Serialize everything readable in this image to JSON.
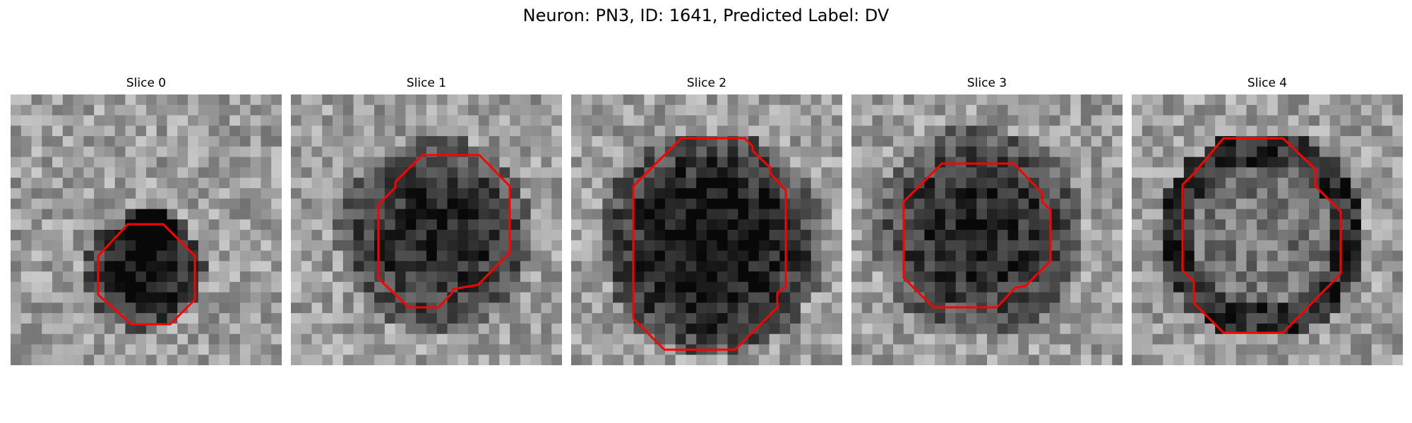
{
  "figure": {
    "title": "Neuron: PN3, ID: 1641, Predicted Label: DV"
  },
  "colors": {
    "outline": "#ff0000",
    "background": "#ffffff"
  },
  "panels": [
    {
      "title": "Slice 0"
    },
    {
      "title": "Slice 1"
    },
    {
      "title": "Slice 2"
    },
    {
      "title": "Slice 3"
    },
    {
      "title": "Slice 4"
    }
  ]
}
